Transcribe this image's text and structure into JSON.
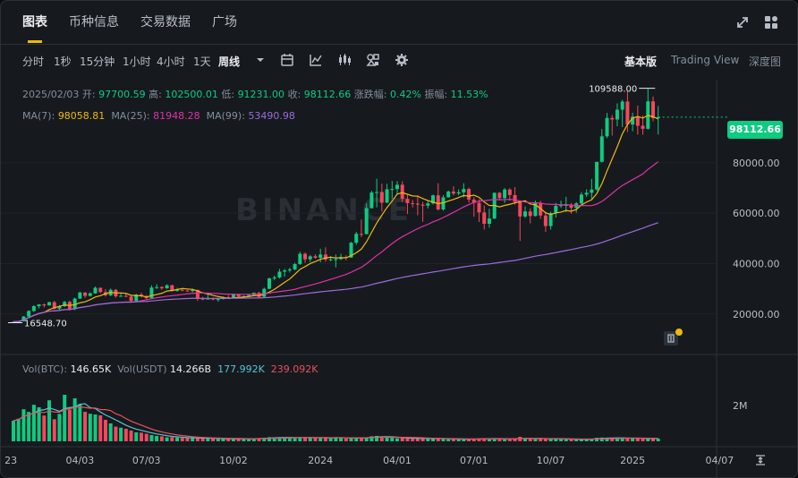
{
  "tabs": [
    {
      "label": "图表",
      "active": true
    },
    {
      "label": "币种信息",
      "active": false
    },
    {
      "label": "交易数据",
      "active": false
    },
    {
      "label": "广场",
      "active": false
    }
  ],
  "toolbar": {
    "intervals": [
      "分时",
      "1秒",
      "15分钟",
      "1小时",
      "4小时",
      "1天",
      "周线"
    ],
    "active_interval": "周线",
    "views": [
      "基本版",
      "Trading View",
      "深度图"
    ],
    "active_view": "基本版"
  },
  "ohlc": {
    "date": "2025/02/03",
    "open_label": "开:",
    "open": "97700.59",
    "high_label": "高:",
    "high": "102500.01",
    "low_label": "低:",
    "low": "91231.00",
    "close_label": "收:",
    "close": "98112.66",
    "change_label": "涨跌幅:",
    "change": "0.42%",
    "amplitude_label": "振幅:",
    "amplitude": "11.53%"
  },
  "ma": {
    "ma7_label": "MA(7):",
    "ma7": "98058.81",
    "ma25_label": "MA(25):",
    "ma25": "81948.28",
    "ma99_label": "MA(99):",
    "ma99": "53490.98"
  },
  "volume": {
    "label": "Vol(BTC):",
    "btc": "146.65K",
    "usdt_label": "Vol(USDT)",
    "usdt": "14.266B",
    "ma1": "177.992K",
    "ma2": "239.092K"
  },
  "watermark": "BINANCE",
  "current_price_tag": "98112.66",
  "colors": {
    "up": "#0ecb81",
    "down": "#f6465d",
    "ma7": "#f0b90b",
    "ma25": "#e032a8",
    "ma99": "#9d6bdb",
    "vol_ma1": "#58c2d6",
    "vol_ma2": "#e8515d",
    "accent": "#f0b90b"
  },
  "chart_data": {
    "type": "candlestick",
    "interval": "weekly",
    "y_axis_ticks": [
      20000,
      40000,
      60000,
      80000
    ],
    "y_axis_labels": [
      "20000.00",
      "40000.00",
      "60000.00",
      "80000.00"
    ],
    "ylim": [
      5000,
      113000
    ],
    "x_tick_labels": [
      "23",
      "04/03",
      "07/03",
      "10/02",
      "2024",
      "04/01",
      "07/01",
      "10/07",
      "2025",
      "04/07"
    ],
    "high_annotation": {
      "label": "109588.00",
      "value": 109588
    },
    "low_annotation": {
      "label": "16548.70",
      "value": 16548.7
    },
    "volume_axis_label": "2M",
    "volume_ylim": [
      0,
      2600000
    ],
    "ohlc": [
      [
        16548.7,
        17000,
        16500,
        16900
      ],
      [
        16900,
        17200,
        16600,
        17100
      ],
      [
        17100,
        19200,
        17000,
        19000
      ],
      [
        19000,
        21500,
        18800,
        21200
      ],
      [
        21200,
        23500,
        20800,
        23100
      ],
      [
        23100,
        23900,
        22200,
        23800
      ],
      [
        23800,
        24200,
        22600,
        23400
      ],
      [
        23400,
        24900,
        23300,
        24700
      ],
      [
        24700,
        25200,
        21800,
        22100
      ],
      [
        22100,
        23500,
        21400,
        23100
      ],
      [
        23100,
        25200,
        22800,
        24800
      ],
      [
        24800,
        25300,
        21400,
        21900
      ],
      [
        21900,
        26500,
        21500,
        26100
      ],
      [
        26100,
        28900,
        26000,
        28500
      ],
      [
        28500,
        28700,
        26400,
        27200
      ],
      [
        27200,
        28600,
        26900,
        28200
      ],
      [
        28200,
        30900,
        28000,
        30400
      ],
      [
        30400,
        30500,
        28300,
        28700
      ],
      [
        28700,
        29900,
        26900,
        27400
      ],
      [
        27400,
        30100,
        27100,
        29600
      ],
      [
        29600,
        29900,
        26500,
        27000
      ],
      [
        27000,
        28400,
        26800,
        27200
      ],
      [
        27200,
        28300,
        26700,
        26900
      ],
      [
        26900,
        27400,
        24800,
        25200
      ],
      [
        25200,
        28000,
        25000,
        27700
      ],
      [
        27700,
        28500,
        26500,
        27000
      ],
      [
        27000,
        27500,
        25800,
        26300
      ],
      [
        26300,
        31400,
        26000,
        30500
      ],
      [
        30500,
        31800,
        29900,
        30700
      ],
      [
        30700,
        31000,
        29600,
        30200
      ],
      [
        30200,
        31800,
        30000,
        31400
      ],
      [
        31400,
        31600,
        28900,
        29200
      ],
      [
        29200,
        30400,
        28800,
        29600
      ],
      [
        29600,
        29800,
        29000,
        29300
      ],
      [
        29300,
        29600,
        28900,
        29100
      ],
      [
        29100,
        30100,
        28600,
        29500
      ],
      [
        29500,
        29700,
        25200,
        26100
      ],
      [
        26100,
        26800,
        25500,
        26000
      ],
      [
        26000,
        28100,
        25800,
        26100
      ],
      [
        26100,
        26500,
        25400,
        25800
      ],
      [
        25800,
        26300,
        24900,
        25900
      ],
      [
        25900,
        26900,
        25800,
        26700
      ],
      [
        26700,
        27500,
        26200,
        26600
      ],
      [
        26600,
        27900,
        26500,
        27900
      ],
      [
        27900,
        28100,
        26600,
        26900
      ],
      [
        26900,
        27300,
        26700,
        27100
      ],
      [
        27100,
        27800,
        26900,
        27500
      ],
      [
        27500,
        28600,
        27200,
        28400
      ],
      [
        28400,
        28800,
        26500,
        26800
      ],
      [
        26800,
        30500,
        26700,
        30000
      ],
      [
        30000,
        34500,
        29800,
        34100
      ],
      [
        34100,
        35200,
        33400,
        34500
      ],
      [
        34500,
        37900,
        34100,
        36800
      ],
      [
        36800,
        37900,
        34800,
        37300
      ],
      [
        37300,
        38400,
        36500,
        37700
      ],
      [
        37700,
        40300,
        37300,
        39800
      ],
      [
        39800,
        44700,
        39500,
        43900
      ],
      [
        43900,
        44400,
        40300,
        41700
      ],
      [
        41700,
        43400,
        40600,
        42900
      ],
      [
        42900,
        43700,
        41900,
        42300
      ],
      [
        42300,
        45900,
        40500,
        43600
      ],
      [
        43600,
        46500,
        40700,
        41600
      ],
      [
        41600,
        43000,
        41000,
        41700
      ],
      [
        41700,
        43600,
        38500,
        41800
      ],
      [
        41800,
        43900,
        41400,
        42600
      ],
      [
        42600,
        43300,
        41300,
        42400
      ],
      [
        42400,
        48600,
        42300,
        48300
      ],
      [
        48300,
        52600,
        47500,
        51800
      ],
      [
        51800,
        57500,
        50500,
        51700
      ],
      [
        51700,
        63900,
        51600,
        62000
      ],
      [
        62000,
        68900,
        61900,
        68200
      ],
      [
        68200,
        73700,
        62300,
        68400
      ],
      [
        68400,
        71700,
        60700,
        64200
      ],
      [
        64200,
        71700,
        64000,
        69500
      ],
      [
        69500,
        72800,
        65800,
        69600
      ],
      [
        69600,
        72700,
        67400,
        71300
      ],
      [
        71300,
        72700,
        64500,
        65700
      ],
      [
        65700,
        67200,
        59700,
        64000
      ],
      [
        64000,
        65300,
        62300,
        63800
      ],
      [
        63800,
        67100,
        59200,
        63400
      ],
      [
        63400,
        64500,
        56600,
        63000
      ],
      [
        63000,
        65300,
        61900,
        63900
      ],
      [
        63900,
        67400,
        63400,
        67100
      ],
      [
        67100,
        71900,
        61000,
        61500
      ],
      [
        61500,
        67200,
        61000,
        66300
      ],
      [
        66300,
        69000,
        66200,
        68600
      ],
      [
        68600,
        70700,
        67100,
        67800
      ],
      [
        67800,
        69500,
        67100,
        68300
      ],
      [
        68300,
        71900,
        66200,
        69600
      ],
      [
        69600,
        70100,
        64200,
        65400
      ],
      [
        65400,
        66400,
        58600,
        64100
      ],
      [
        64100,
        65500,
        56500,
        60300
      ],
      [
        60300,
        63100,
        53500,
        55800
      ],
      [
        55800,
        61700,
        54300,
        57900
      ],
      [
        57900,
        68200,
        57600,
        68100
      ],
      [
        68100,
        68400,
        65100,
        66000
      ],
      [
        66000,
        70000,
        64100,
        69400
      ],
      [
        69400,
        69900,
        65000,
        67200
      ],
      [
        67200,
        70400,
        63400,
        64500
      ],
      [
        64500,
        64900,
        49000,
        58700
      ],
      [
        58700,
        62700,
        58100,
        60700
      ],
      [
        60700,
        61900,
        56000,
        58900
      ],
      [
        58900,
        65000,
        58700,
        64100
      ],
      [
        64100,
        64900,
        57800,
        59100
      ],
      [
        59100,
        60600,
        52600,
        54900
      ],
      [
        54900,
        60600,
        53500,
        60000
      ],
      [
        60000,
        64100,
        58300,
        62900
      ],
      [
        62900,
        65000,
        62100,
        63200
      ],
      [
        63200,
        66500,
        60400,
        63300
      ],
      [
        63300,
        64100,
        59800,
        62100
      ],
      [
        62100,
        64400,
        60200,
        63900
      ],
      [
        63900,
        68400,
        63300,
        67400
      ],
      [
        67400,
        69500,
        66500,
        68100
      ],
      [
        68100,
        73600,
        65700,
        69400
      ],
      [
        69400,
        80300,
        68800,
        80400
      ],
      [
        80400,
        93400,
        80200,
        90500
      ],
      [
        90500,
        99800,
        89800,
        97800
      ],
      [
        97800,
        99000,
        90800,
        97200
      ],
      [
        97200,
        103600,
        94500,
        101100
      ],
      [
        101100,
        105000,
        94200,
        104300
      ],
      [
        104300,
        108300,
        92200,
        95200
      ],
      [
        95200,
        99900,
        92500,
        98300
      ],
      [
        98300,
        102700,
        91200,
        94700
      ],
      [
        94700,
        98800,
        91200,
        93500
      ],
      [
        93500,
        109588,
        93200,
        104400
      ],
      [
        104400,
        106400,
        96500,
        97700
      ],
      [
        97700,
        102500,
        91231,
        98112.66
      ]
    ],
    "volume_btc": [
      1150000,
      1260000,
      1790000,
      1640000,
      2040000,
      1900000,
      1440000,
      2290000,
      1230000,
      1530000,
      2600000,
      1780000,
      2400000,
      2050000,
      1650000,
      1540000,
      1500000,
      1450000,
      1200000,
      1000000,
      820000,
      760000,
      700000,
      600000,
      500000,
      480000,
      420000,
      350000,
      300000,
      280000,
      220000,
      240000,
      210000,
      190000,
      180000,
      170000,
      200000,
      170000,
      160000,
      150000,
      140000,
      130000,
      135000,
      140000,
      150000,
      145000,
      120000,
      170000,
      180000,
      190000,
      230000,
      220000,
      215000,
      200000,
      210000,
      190000,
      230000,
      220000,
      180000,
      190000,
      200000,
      210000,
      180000,
      230000,
      190000,
      150000,
      200000,
      190000,
      210000,
      220000,
      280000,
      300000,
      260000,
      220000,
      200000,
      170000,
      180000,
      160000,
      140000,
      170000,
      180000,
      150000,
      140000,
      160000,
      130000,
      120000,
      110000,
      120000,
      110000,
      130000,
      140000,
      160000,
      170000,
      130000,
      160000,
      140000,
      120000,
      150000,
      130000,
      250000,
      140000,
      150000,
      130000,
      140000,
      170000,
      130000,
      140000,
      120000,
      110000,
      120000,
      100000,
      110000,
      120000,
      150000,
      200000,
      210000,
      190000,
      160000,
      180000,
      200000,
      190000,
      160000,
      150000,
      140000,
      150000,
      180000,
      146650
    ]
  }
}
